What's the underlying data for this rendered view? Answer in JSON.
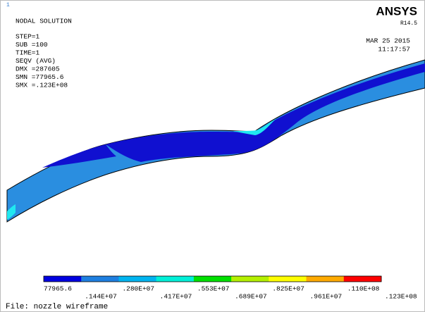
{
  "header": {
    "window_number": "1",
    "title": "NODAL SOLUTION",
    "brand": "ANSYS",
    "release": "R14.5",
    "date": "MAR 25 2015",
    "time": "11:17:57"
  },
  "info": [
    "STEP=1",
    "SUB =100",
    "TIME=1",
    "SEQV     (AVG)",
    "DMX =287605",
    "SMN =77965.6",
    "SMX =.123E+08"
  ],
  "legend": {
    "colors": [
      "#0000e0",
      "#1e7fe0",
      "#00b4f0",
      "#00f0d8",
      "#00e000",
      "#b4f000",
      "#ffff00",
      "#ffaa00",
      "#ff0000"
    ],
    "labels": [
      "77965.6",
      ".144E+07",
      ".280E+07",
      ".417E+07",
      ".553E+07",
      ".689E+07",
      ".825E+07",
      ".961E+07",
      ".110E+08",
      ".123E+08"
    ]
  },
  "footer": "File: nozzle wireframe"
}
